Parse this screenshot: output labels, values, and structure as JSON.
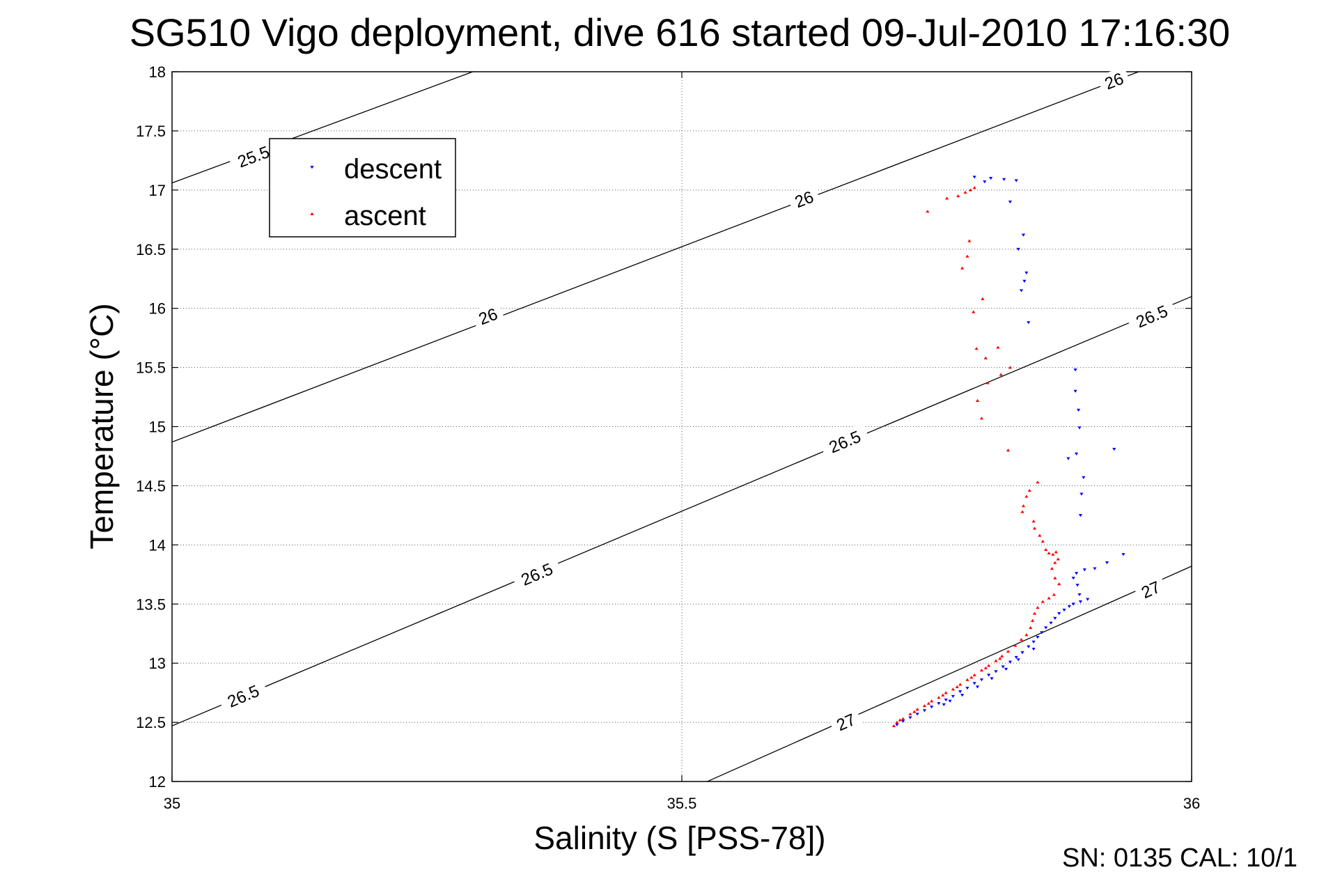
{
  "chart_data": {
    "type": "scatter",
    "title": "SG510 Vigo deployment, dive 616 started 09-Jul-2010 17:16:30",
    "xlabel": "Salinity (S [PSS-78])",
    "ylabel": "Temperature (°C)",
    "xlim": [
      35,
      36
    ],
    "ylim": [
      12,
      18
    ],
    "xticks": [
      "35",
      "35.5",
      "36"
    ],
    "yticks": [
      "12",
      "12.5",
      "13",
      "13.5",
      "14",
      "14.5",
      "15",
      "15.5",
      "16",
      "16.5",
      "17",
      "17.5",
      "18"
    ],
    "grid": true,
    "legend_position": "top-left",
    "isopycnal_labels": [
      "25.5",
      "26",
      "26.5",
      "27"
    ],
    "isopycnals": [
      {
        "sigma": 25.5,
        "points": [
          [
            35.0,
            17.06
          ],
          [
            35.295,
            18.0
          ]
        ],
        "labels": [
          {
            "text": "25.5",
            "s": 35.08,
            "t": 17.28
          }
        ]
      },
      {
        "sigma": 26.0,
        "points": [
          [
            35.0,
            14.87
          ],
          [
            35.948,
            18.0
          ]
        ],
        "labels": [
          {
            "text": "26",
            "s": 35.31,
            "t": 15.93
          },
          {
            "text": "26",
            "s": 35.62,
            "t": 16.92
          },
          {
            "text": "26",
            "s": 35.924,
            "t": 17.92
          }
        ]
      },
      {
        "sigma": 26.5,
        "points": [
          [
            35.0,
            12.47
          ],
          [
            36.0,
            16.1
          ]
        ],
        "labels": [
          {
            "text": "26.5",
            "s": 35.07,
            "t": 12.72
          },
          {
            "text": "26.5",
            "s": 35.358,
            "t": 13.75
          },
          {
            "text": "26.5",
            "s": 35.66,
            "t": 14.87
          },
          {
            "text": "26.5",
            "s": 35.961,
            "t": 15.93
          }
        ]
      },
      {
        "sigma": 27.0,
        "points": [
          [
            35.525,
            12.0
          ],
          [
            36.0,
            13.82
          ]
        ],
        "labels": [
          {
            "text": "27",
            "s": 35.661,
            "t": 12.5
          },
          {
            "text": "27",
            "s": 35.96,
            "t": 13.62
          }
        ]
      }
    ],
    "series": [
      {
        "name": "descent",
        "color": "#0000ff",
        "marker": "triangle-down",
        "points": [
          [
            35.787,
            17.11
          ],
          [
            35.797,
            17.07
          ],
          [
            35.803,
            17.1
          ],
          [
            35.816,
            17.09
          ],
          [
            35.828,
            17.08
          ],
          [
            35.822,
            16.9
          ],
          [
            35.835,
            16.62
          ],
          [
            35.83,
            16.5
          ],
          [
            35.838,
            16.3
          ],
          [
            35.836,
            16.23
          ],
          [
            35.833,
            16.15
          ],
          [
            35.84,
            15.88
          ],
          [
            35.886,
            15.48
          ],
          [
            35.886,
            15.3
          ],
          [
            35.889,
            15.14
          ],
          [
            35.89,
            14.99
          ],
          [
            35.924,
            14.81
          ],
          [
            35.887,
            14.77
          ],
          [
            35.879,
            14.73
          ],
          [
            35.894,
            14.57
          ],
          [
            35.892,
            14.43
          ],
          [
            35.891,
            14.25
          ],
          [
            35.933,
            13.92
          ],
          [
            35.917,
            13.85
          ],
          [
            35.905,
            13.8
          ],
          [
            35.895,
            13.79
          ],
          [
            35.887,
            13.76
          ],
          [
            35.884,
            13.72
          ],
          [
            35.888,
            13.66
          ],
          [
            35.89,
            13.58
          ],
          [
            35.898,
            13.54
          ],
          [
            35.891,
            13.52
          ],
          [
            35.884,
            13.5
          ],
          [
            35.88,
            13.48
          ],
          [
            35.875,
            13.45
          ],
          [
            35.87,
            13.42
          ],
          [
            35.866,
            13.38
          ],
          [
            35.862,
            13.34
          ],
          [
            35.857,
            13.3
          ],
          [
            35.853,
            13.26
          ],
          [
            35.849,
            13.22
          ],
          [
            35.845,
            13.18
          ],
          [
            35.84,
            13.14
          ],
          [
            35.834,
            13.09
          ],
          [
            35.828,
            13.05
          ],
          [
            35.822,
            13.01
          ],
          [
            35.815,
            12.97
          ],
          [
            35.808,
            12.93
          ],
          [
            35.801,
            12.9
          ],
          [
            35.794,
            12.86
          ],
          [
            35.787,
            12.83
          ],
          [
            35.78,
            12.79
          ],
          [
            35.773,
            12.76
          ],
          [
            35.766,
            12.72
          ],
          [
            35.759,
            12.69
          ],
          [
            35.752,
            12.66
          ],
          [
            35.745,
            12.63
          ],
          [
            35.738,
            12.6
          ],
          [
            35.731,
            12.57
          ],
          [
            35.724,
            12.54
          ],
          [
            35.717,
            12.51
          ],
          [
            35.711,
            12.48
          ],
          [
            35.757,
            12.65
          ],
          [
            35.763,
            12.68
          ],
          [
            35.775,
            12.73
          ],
          [
            35.79,
            12.8
          ],
          [
            35.804,
            12.87
          ],
          [
            35.818,
            12.95
          ],
          [
            35.83,
            13.03
          ],
          [
            35.845,
            13.12
          ]
        ]
      },
      {
        "name": "ascent",
        "color": "#ff0000",
        "marker": "triangle-up",
        "points": [
          [
            35.741,
            16.82
          ],
          [
            35.76,
            16.93
          ],
          [
            35.771,
            16.95
          ],
          [
            35.778,
            16.98
          ],
          [
            35.783,
            17.0
          ],
          [
            35.787,
            17.02
          ],
          [
            35.775,
            16.34
          ],
          [
            35.78,
            16.44
          ],
          [
            35.782,
            16.57
          ],
          [
            35.795,
            16.08
          ],
          [
            35.786,
            15.97
          ],
          [
            35.789,
            15.66
          ],
          [
            35.798,
            15.58
          ],
          [
            35.81,
            15.67
          ],
          [
            35.8,
            15.37
          ],
          [
            35.813,
            15.44
          ],
          [
            35.822,
            15.5
          ],
          [
            35.79,
            15.22
          ],
          [
            35.794,
            15.07
          ],
          [
            35.82,
            14.8
          ],
          [
            35.841,
            14.46
          ],
          [
            35.838,
            14.41
          ],
          [
            35.835,
            14.33
          ],
          [
            35.834,
            14.28
          ],
          [
            35.849,
            14.53
          ],
          [
            35.845,
            14.2
          ],
          [
            35.846,
            14.14
          ],
          [
            35.851,
            14.08
          ],
          [
            35.854,
            14.03
          ],
          [
            35.857,
            13.96
          ],
          [
            35.86,
            13.93
          ],
          [
            35.864,
            13.92
          ],
          [
            35.867,
            13.94
          ],
          [
            35.869,
            13.88
          ],
          [
            35.866,
            13.85
          ],
          [
            35.863,
            13.8
          ],
          [
            35.866,
            13.72
          ],
          [
            35.87,
            13.67
          ],
          [
            35.865,
            13.58
          ],
          [
            35.86,
            13.55
          ],
          [
            35.854,
            13.52
          ],
          [
            35.849,
            13.47
          ],
          [
            35.846,
            13.42
          ],
          [
            35.844,
            13.36
          ],
          [
            35.842,
            13.3
          ],
          [
            35.838,
            13.24
          ],
          [
            35.833,
            13.2
          ],
          [
            35.827,
            13.15
          ],
          [
            35.82,
            13.1
          ],
          [
            35.814,
            13.06
          ],
          [
            35.808,
            13.02
          ],
          [
            35.801,
            12.98
          ],
          [
            35.794,
            12.94
          ],
          [
            35.787,
            12.9
          ],
          [
            35.78,
            12.86
          ],
          [
            35.773,
            12.82
          ],
          [
            35.766,
            12.78
          ],
          [
            35.759,
            12.75
          ],
          [
            35.752,
            12.71
          ],
          [
            35.745,
            12.68
          ],
          [
            35.738,
            12.64
          ],
          [
            35.731,
            12.61
          ],
          [
            35.724,
            12.57
          ],
          [
            35.717,
            12.53
          ],
          [
            35.711,
            12.5
          ],
          [
            35.708,
            12.47
          ],
          [
            35.714,
            12.52
          ],
          [
            35.728,
            12.59
          ],
          [
            35.742,
            12.66
          ],
          [
            35.756,
            12.73
          ],
          [
            35.77,
            12.8
          ],
          [
            35.784,
            12.88
          ],
          [
            35.798,
            12.96
          ],
          [
            35.812,
            13.04
          ]
        ]
      }
    ]
  },
  "footer": {
    "serial_text": "SN: 0135  CAL: 10/1"
  }
}
